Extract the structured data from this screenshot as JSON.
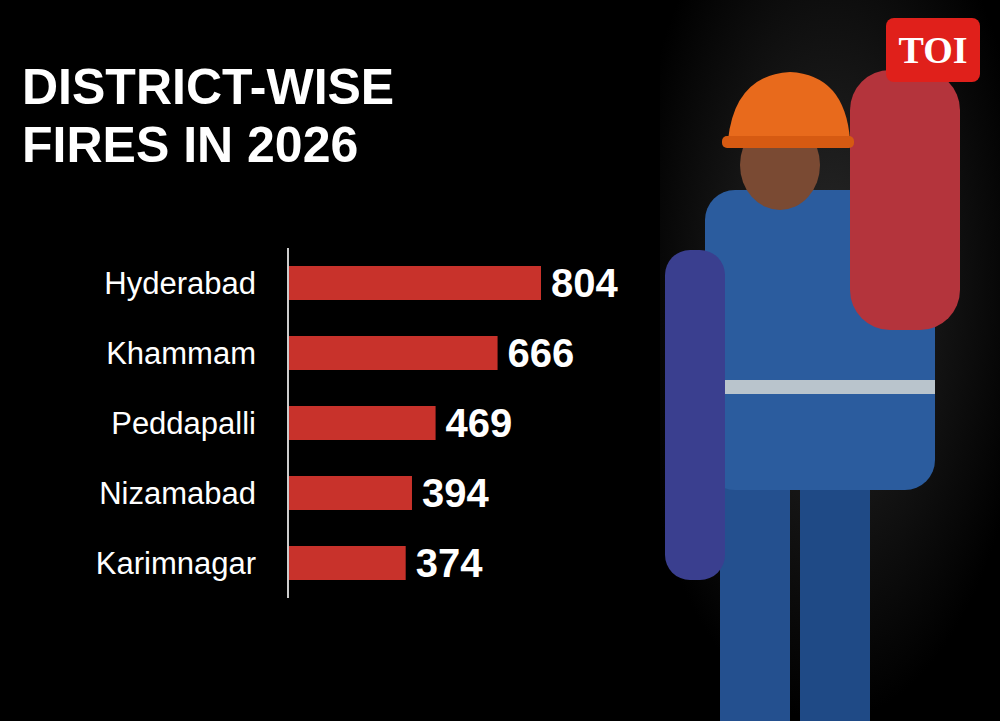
{
  "chart_data": {
    "type": "bar",
    "title": "DISTRICT-WISE FIRES IN 2026",
    "categories": [
      "Hyderabad",
      "Khammam",
      "Peddapalli",
      "Nizamabad",
      "Karimnagar"
    ],
    "values": [
      804,
      666,
      469,
      394,
      374
    ],
    "color": "#c8322b",
    "orientation": "horizontal",
    "data_labels": true,
    "tick_labels": "y",
    "grid": false,
    "annotations": [
      "TOI"
    ]
  }
}
